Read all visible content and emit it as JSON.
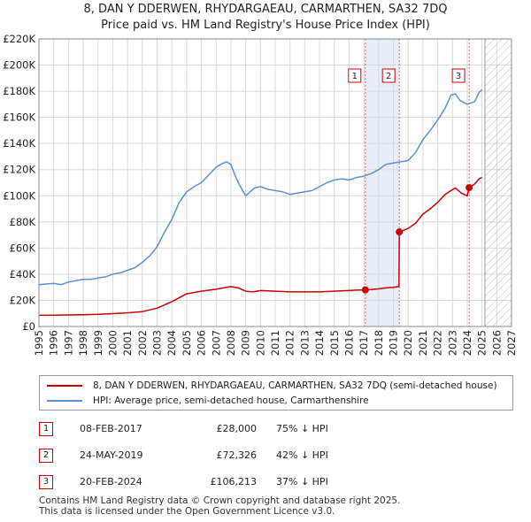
{
  "title_line1": "8, DAN Y DDERWEN, RHYDARGAEAU, CARMARTHEN, SA32 7DQ",
  "title_line2": "Price paid vs. HM Land Registry's House Price Index (HPI)",
  "colors": {
    "property": "#cc0000",
    "hpi": "#5b8fd6",
    "band": "#e8eef8",
    "grid": "#d8d8d8"
  },
  "legend": {
    "property_label": "8, DAN Y DDERWEN, RHYDARGAEAU, CARMARTHEN, SA32 7DQ (semi-detached house)",
    "hpi_label": "HPI: Average price, semi-detached house, Carmarthenshire"
  },
  "transactions": [
    {
      "num": "1",
      "date": "08-FEB-2017",
      "price": "£28,000",
      "hpi": "75% ↓ HPI"
    },
    {
      "num": "2",
      "date": "24-MAY-2019",
      "price": "£72,326",
      "hpi": "42% ↓ HPI"
    },
    {
      "num": "3",
      "date": "20-FEB-2024",
      "price": "£106,213",
      "hpi": "37% ↓ HPI"
    }
  ],
  "footer_line1": "Contains HM Land Registry data © Crown copyright and database right 2025.",
  "footer_line2": "This data is licensed under the Open Government Licence v3.0.",
  "chart_data": {
    "type": "line",
    "title": "8, DAN Y DDERWEN, RHYDARGAEAU, CARMARTHEN, SA32 7DQ — Price paid vs. HM Land Registry's House Price Index (HPI)",
    "xlabel": "",
    "ylabel": "",
    "xlim": [
      1995,
      2027
    ],
    "ylim": [
      0,
      220000
    ],
    "x_ticks": [
      1995,
      1996,
      1997,
      1998,
      1999,
      2000,
      2001,
      2002,
      2003,
      2004,
      2005,
      2006,
      2007,
      2008,
      2009,
      2010,
      2011,
      2012,
      2013,
      2014,
      2015,
      2016,
      2017,
      2018,
      2019,
      2020,
      2021,
      2022,
      2023,
      2024,
      2025,
      2026,
      2027
    ],
    "y_ticks": [
      {
        "value": 0,
        "label": "£0"
      },
      {
        "value": 20000,
        "label": "£20K"
      },
      {
        "value": 40000,
        "label": "£40K"
      },
      {
        "value": 60000,
        "label": "£60K"
      },
      {
        "value": 80000,
        "label": "£80K"
      },
      {
        "value": 100000,
        "label": "£100K"
      },
      {
        "value": 120000,
        "label": "£120K"
      },
      {
        "value": 140000,
        "label": "£140K"
      },
      {
        "value": 160000,
        "label": "£160K"
      },
      {
        "value": 180000,
        "label": "£180K"
      },
      {
        "value": 200000,
        "label": "£200K"
      },
      {
        "value": 220000,
        "label": "£220K"
      }
    ],
    "grid": true,
    "hatched_future_from": 2025.2,
    "shaded_band": [
      2017.1,
      2019.4
    ],
    "sale_markers": [
      {
        "label": "1",
        "x": 2017.1,
        "y": 28000
      },
      {
        "label": "2",
        "x": 2019.4,
        "y": 72326
      },
      {
        "label": "3",
        "x": 2024.13,
        "y": 106213
      }
    ],
    "series": [
      {
        "name": "HPI: Average price, semi-detached house, Carmarthenshire",
        "x": [
          1995.0,
          1995.5,
          1996.0,
          1996.5,
          1997.0,
          1997.5,
          1998.0,
          1998.5,
          1999.0,
          1999.5,
          2000.0,
          2000.5,
          2001.0,
          2001.5,
          2002.0,
          2002.5,
          2003.0,
          2003.5,
          2004.0,
          2004.5,
          2005.0,
          2005.5,
          2006.0,
          2006.5,
          2007.0,
          2007.3,
          2007.7,
          2008.0,
          2008.3,
          2008.6,
          2009.0,
          2009.3,
          2009.6,
          2010.0,
          2010.5,
          2011.0,
          2011.5,
          2012.0,
          2012.5,
          2013.0,
          2013.5,
          2014.0,
          2014.5,
          2015.0,
          2015.5,
          2016.0,
          2016.5,
          2017.0,
          2017.5,
          2018.0,
          2018.5,
          2019.0,
          2019.5,
          2020.0,
          2020.5,
          2021.0,
          2021.5,
          2022.0,
          2022.5,
          2022.9,
          2023.2,
          2023.5,
          2024.0,
          2024.5,
          2024.8,
          2025.0
        ],
        "values": [
          32000,
          32500,
          33000,
          32000,
          34000,
          35000,
          36000,
          36000,
          37000,
          38000,
          40000,
          41000,
          43000,
          45000,
          49000,
          54000,
          61000,
          72000,
          82000,
          95000,
          103000,
          107000,
          110000,
          116000,
          122000,
          124000,
          126000,
          124000,
          115000,
          108000,
          100000,
          103000,
          106000,
          107000,
          105000,
          104000,
          103000,
          101000,
          102000,
          103000,
          104000,
          107000,
          110000,
          112000,
          113000,
          112000,
          114000,
          115000,
          117000,
          120000,
          124000,
          125000,
          126000,
          127000,
          133000,
          143000,
          150000,
          158000,
          167000,
          177000,
          178000,
          173000,
          170000,
          172000,
          179000,
          181000
        ]
      },
      {
        "name": "8, DAN Y DDERWEN, RHYDARGAEAU, CARMARTHEN, SA32 7DQ (semi-detached house)",
        "x": [
          1995.0,
          1996.0,
          1997.0,
          1998.0,
          1999.0,
          2000.0,
          2001.0,
          2002.0,
          2003.0,
          2004.0,
          2005.0,
          2006.0,
          2007.0,
          2007.5,
          2008.0,
          2008.5,
          2009.0,
          2009.5,
          2010.0,
          2011.0,
          2012.0,
          2013.0,
          2014.0,
          2015.0,
          2016.0,
          2016.5,
          2017.1,
          2017.5,
          2018.0,
          2018.5,
          2019.0,
          2019.38,
          2019.4,
          2020.0,
          2020.5,
          2021.0,
          2021.5,
          2022.0,
          2022.5,
          2022.9,
          2023.2,
          2023.6,
          2024.0,
          2024.13,
          2024.5,
          2024.8,
          2025.0
        ],
        "values": [
          8500,
          8600,
          8800,
          9000,
          9300,
          9800,
          10400,
          11400,
          14000,
          19000,
          25000,
          27000,
          28500,
          29500,
          30500,
          29500,
          27000,
          26500,
          27500,
          27000,
          26500,
          26500,
          26500,
          27000,
          27500,
          27800,
          28000,
          28300,
          28800,
          29500,
          30000,
          30500,
          72326,
          75000,
          79000,
          86000,
          90000,
          95000,
          101000,
          104000,
          106000,
          102000,
          100000,
          106213,
          109000,
          113000,
          114000
        ]
      }
    ]
  }
}
